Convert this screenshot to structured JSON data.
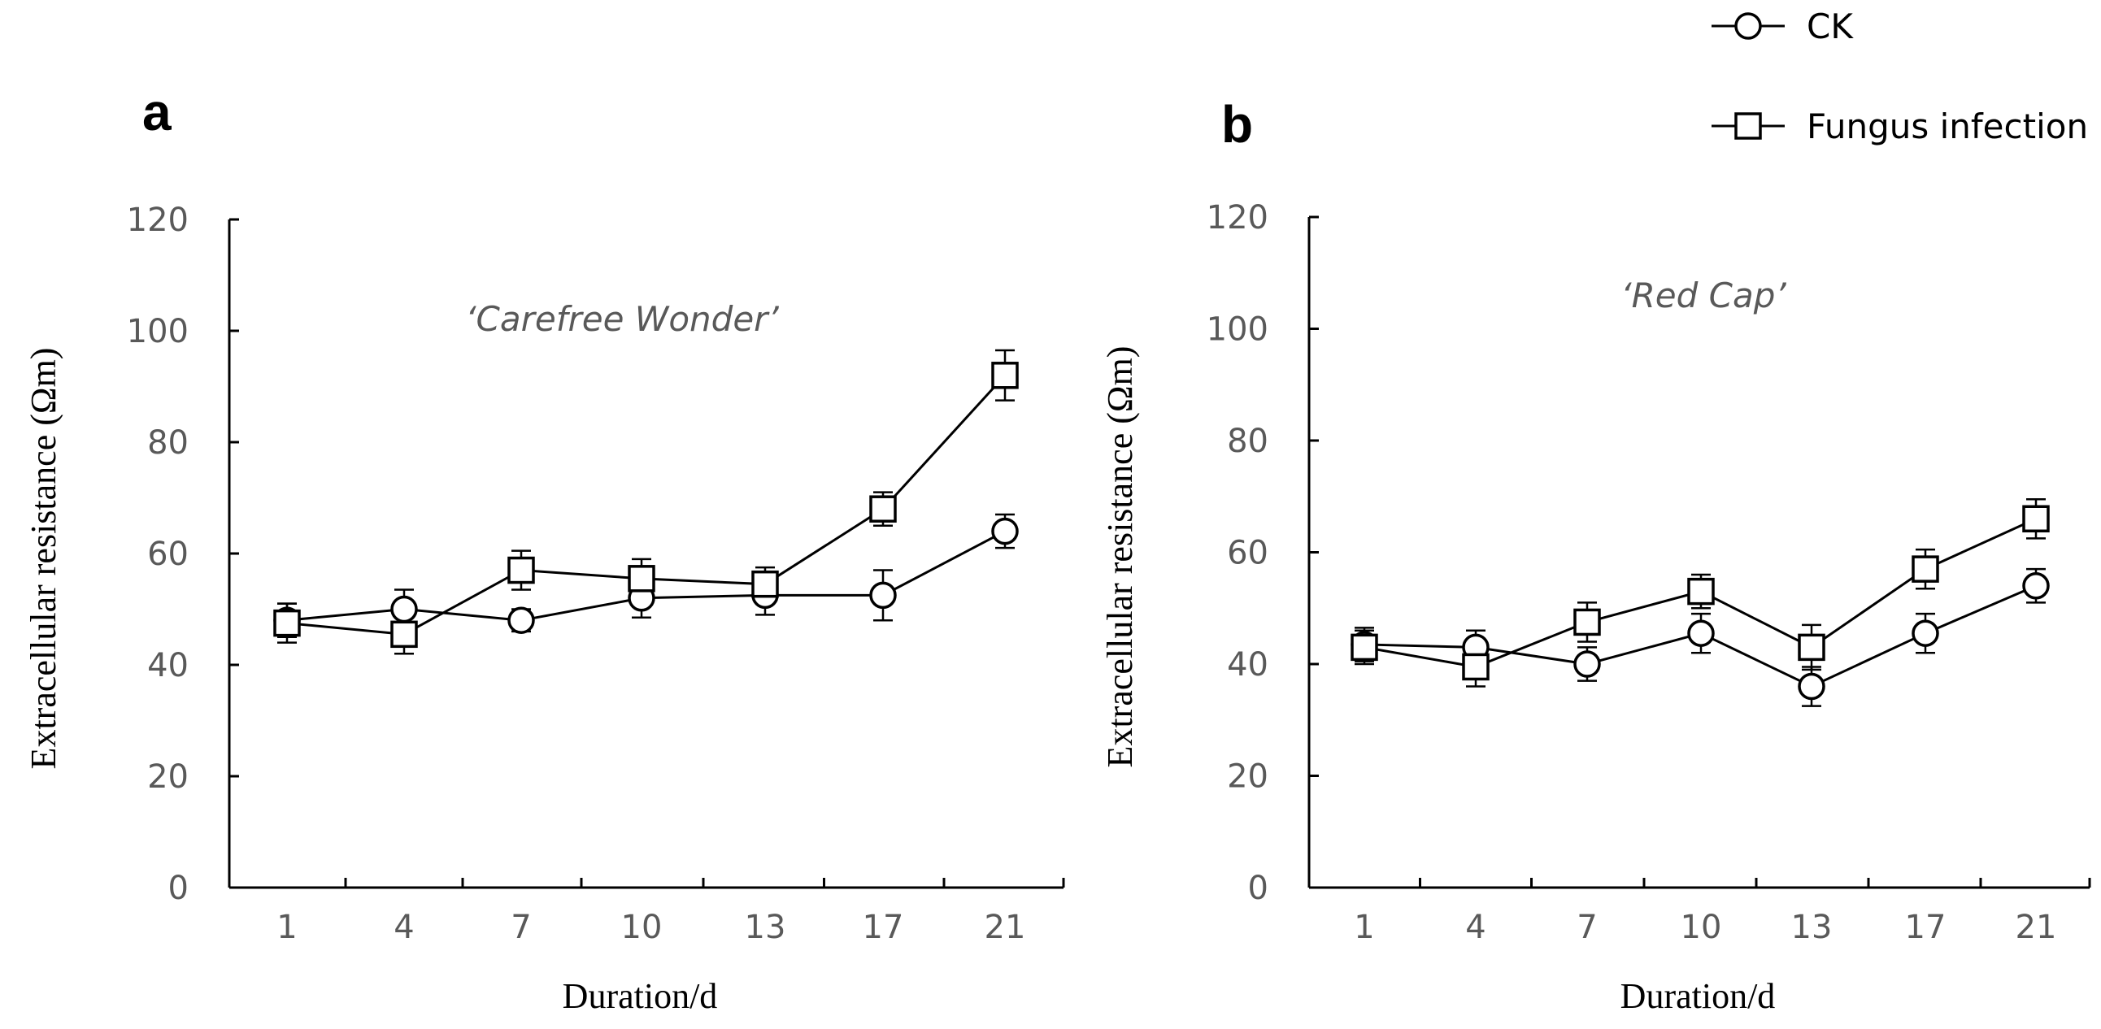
{
  "legend": {
    "entries": [
      {
        "name": "CK",
        "marker": "circle"
      },
      {
        "name": "Fungus infection",
        "marker": "square"
      }
    ]
  },
  "chart_data": [
    {
      "type": "line",
      "panel": "a",
      "title": "‘Carefree Wonder’",
      "xlabel": "Duration/d",
      "ylabel": "Extracellular resistance (Ωm)",
      "categories": [
        "1",
        "4",
        "7",
        "10",
        "13",
        "17",
        "21"
      ],
      "yticks": [
        "0",
        "20",
        "40",
        "60",
        "80",
        "100",
        "120"
      ],
      "ylim": [
        0,
        120
      ],
      "series": [
        {
          "name": "CK",
          "marker": "circle",
          "values": [
            48,
            50,
            48,
            52,
            52.5,
            52.5,
            64
          ],
          "errors": [
            3,
            3.5,
            2,
            3.5,
            3.5,
            4.5,
            3
          ]
        },
        {
          "name": "Fungus infection",
          "marker": "square",
          "values": [
            47.5,
            45.5,
            57,
            55.5,
            54.5,
            68,
            92
          ],
          "errors": [
            3.5,
            3.5,
            3.5,
            3.5,
            3,
            3,
            4.5
          ]
        }
      ]
    },
    {
      "type": "line",
      "panel": "b",
      "title": "‘Red Cap’",
      "xlabel": "Duration/d",
      "ylabel": "Extracellular resistance (Ωm)",
      "categories": [
        "1",
        "4",
        "7",
        "10",
        "13",
        "17",
        "21"
      ],
      "yticks": [
        "0",
        "20",
        "40",
        "60",
        "80",
        "100",
        "120"
      ],
      "ylim": [
        0,
        120
      ],
      "series": [
        {
          "name": "CK",
          "marker": "circle",
          "values": [
            43.5,
            43,
            40,
            45.5,
            36,
            45.5,
            54
          ],
          "errors": [
            3,
            3,
            3,
            3.5,
            3.5,
            3.5,
            3
          ]
        },
        {
          "name": "Fungus infection",
          "marker": "square",
          "values": [
            43,
            39.5,
            47.5,
            53,
            43,
            57,
            66
          ],
          "errors": [
            3,
            3.5,
            3.5,
            3,
            4,
            3.5,
            3.5
          ]
        }
      ]
    }
  ]
}
